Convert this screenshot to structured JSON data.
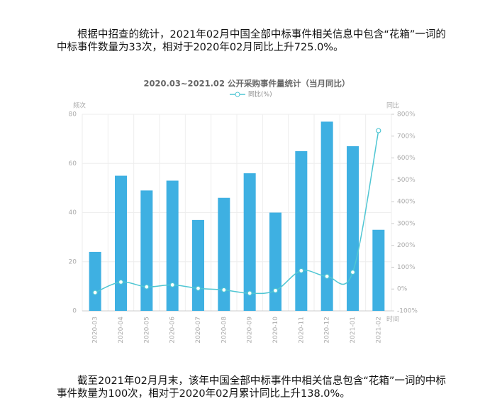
{
  "paragraphs": [
    "根据中招查的统计，2021年02月中国全部中标事件相关信息中包含“花箱”一词的中标事件数量为33次，相对于2020年02月同比上升725.0%。",
    "截至2021年02月月末，该年中国全部中标事件中相关信息包含“花箱”一词的中标事件数量为100次，相对于2020年02月累计同比上升138.0%。"
  ],
  "chart_data": {
    "type": "bar-line",
    "title": "2020.03~2021.02 公开采购事件量统计（当月同比）",
    "y_label": "频次",
    "y2_label": "同比",
    "x_label": "时间",
    "categories": [
      "2020-03",
      "2020-04",
      "2020-05",
      "2020-06",
      "2020-07",
      "2020-08",
      "2020-09",
      "2020-10",
      "2020-11",
      "2020-12",
      "2021-01",
      "2021-02"
    ],
    "series": [
      {
        "type": "bar",
        "color": "#3eb0e2",
        "values": [
          24,
          55,
          49,
          53,
          37,
          46,
          56,
          40,
          65,
          77,
          67,
          33
        ]
      },
      {
        "type": "line",
        "name": "同比(%)",
        "color": "#4fc6d3",
        "axis": "y2",
        "values": [
          -16,
          32,
          10,
          19,
          3,
          -4,
          -19,
          -7,
          84,
          58,
          77,
          725
        ]
      }
    ],
    "ylim": [
      0,
      80
    ],
    "yticks": [
      0,
      20,
      40,
      60,
      80
    ],
    "y2lim": [
      -100,
      800
    ],
    "y2ticks": [
      {
        "value": -100,
        "label": "-100%"
      },
      {
        "value": 0,
        "label": "0%"
      },
      {
        "value": 100,
        "label": "100%"
      },
      {
        "value": 200,
        "label": "200%"
      },
      {
        "value": 300,
        "label": "300%"
      },
      {
        "value": 400,
        "label": "400%"
      },
      {
        "value": 500,
        "label": "500%"
      },
      {
        "value": 600,
        "label": "600%"
      },
      {
        "value": 700,
        "label": "700%"
      },
      {
        "value": 800,
        "label": "800%"
      }
    ],
    "grid": true,
    "legend": "top"
  }
}
